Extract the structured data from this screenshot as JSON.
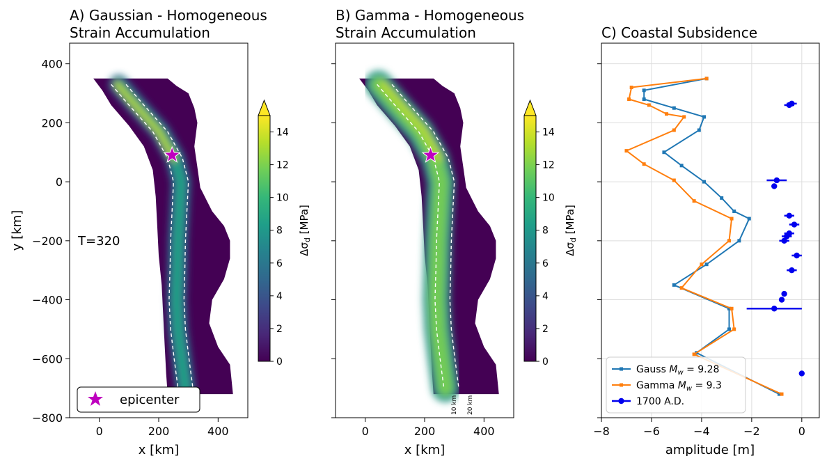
{
  "colors": {
    "gauss": "#1f77b4",
    "gamma": "#ff7f0e",
    "obs": "#0000ee",
    "epicenter": "#bf00bf",
    "map_fill": "#440154",
    "dashed": "#ffffff",
    "annotation": "#808080",
    "grid": "#dddddd"
  },
  "colorbar_stops": [
    "#440154",
    "#482878",
    "#3e4989",
    "#31688e",
    "#26828e",
    "#1f9e89",
    "#35b779",
    "#6ece58",
    "#b5de2b",
    "#fde725"
  ],
  "chart_data": [
    {
      "type": "heatmap",
      "title": "A) Gaussian - Homogeneous\nStrain Accumulation",
      "title_lines": [
        "A) Gaussian - Homogeneous",
        "Strain Accumulation"
      ],
      "xlabel": "x [km]",
      "ylabel": "y [km]",
      "xlim": [
        -100,
        500
      ],
      "ylim": [
        -800,
        470
      ],
      "xticks": [
        0,
        200,
        400
      ],
      "yticks": [
        -800,
        -600,
        -400,
        -200,
        0,
        200,
        400
      ],
      "colorbar": {
        "label": "Δσ_d [MPa]",
        "ticks": [
          0,
          2,
          4,
          6,
          8,
          10,
          12,
          14
        ],
        "range": [
          0,
          15
        ],
        "extend": "max"
      },
      "annotation": "T=320",
      "epicenter": {
        "x": 245,
        "y": 90
      },
      "legend": {
        "label": "epicenter",
        "position": "lower-left"
      },
      "grid": false
    },
    {
      "type": "heatmap",
      "title": "B) Gamma - Homogeneous\nStrain Accumulation",
      "title_lines": [
        "B) Gamma - Homogeneous",
        "Strain Accumulation"
      ],
      "xlabel": "x (km)",
      "xlabel_text": "x [km]",
      "xlim": [
        -100,
        500
      ],
      "ylim": [
        -800,
        470
      ],
      "xticks": [
        0,
        200,
        400
      ],
      "colorbar": {
        "label": "Δσ_d [MPa]",
        "ticks": [
          0,
          2,
          4,
          6,
          8,
          10,
          12,
          14
        ],
        "range": [
          0,
          15
        ],
        "extend": "max"
      },
      "contour_labels": [
        "10 km",
        "20 km"
      ],
      "epicenter": {
        "x": 220,
        "y": 90
      },
      "grid": false
    },
    {
      "type": "line",
      "title": "C) Coastal Subsidence",
      "xlabel": "amplitude [m]",
      "xlim": [
        -8,
        0.7
      ],
      "ylim": [
        -800,
        470
      ],
      "xticks": [
        -8,
        -6,
        -4,
        -2,
        0
      ],
      "grid": true,
      "legend_position": "lower-left",
      "series": [
        {
          "name": "Gauss M_w = 9.28",
          "legend_prefix": "Gauss ",
          "legend_math": "9.28",
          "color_key": "gauss",
          "points": [
            [
              -3.8,
              350
            ],
            [
              -6.3,
              310
            ],
            [
              -6.3,
              280
            ],
            [
              -5.1,
              250
            ],
            [
              -3.9,
              220
            ],
            [
              -4.1,
              175
            ],
            [
              -5.5,
              100
            ],
            [
              -4.8,
              55
            ],
            [
              -3.9,
              0
            ],
            [
              -3.2,
              -55
            ],
            [
              -2.7,
              -100
            ],
            [
              -2.1,
              -125
            ],
            [
              -2.5,
              -200
            ],
            [
              -3.8,
              -280
            ],
            [
              -5.1,
              -350
            ],
            [
              -2.9,
              -430
            ],
            [
              -2.9,
              -500
            ],
            [
              -4.2,
              -580
            ],
            [
              -0.9,
              -720
            ]
          ]
        },
        {
          "name": "Gamma M_w = 9.3",
          "legend_prefix": "Gamma ",
          "legend_math": "9.3",
          "color_key": "gamma",
          "points": [
            [
              -3.8,
              350
            ],
            [
              -6.8,
              320
            ],
            [
              -6.9,
              280
            ],
            [
              -6.1,
              260
            ],
            [
              -5.4,
              230
            ],
            [
              -4.7,
              220
            ],
            [
              -5.1,
              175
            ],
            [
              -7.0,
              105
            ],
            [
              -6.3,
              60
            ],
            [
              -5.1,
              5
            ],
            [
              -4.3,
              -65
            ],
            [
              -2.8,
              -125
            ],
            [
              -2.9,
              -200
            ],
            [
              -4.0,
              -280
            ],
            [
              -4.8,
              -360
            ],
            [
              -2.8,
              -430
            ],
            [
              -2.7,
              -500
            ],
            [
              -4.3,
              -585
            ],
            [
              -0.8,
              -720
            ]
          ]
        },
        {
          "name": "1700 A.D.",
          "color_key": "obs",
          "points": [
            [
              -0.4,
              265
            ],
            [
              -0.5,
              260
            ],
            [
              -1.0,
              5
            ],
            [
              -1.1,
              -15
            ],
            [
              -0.5,
              -115
            ],
            [
              -0.3,
              -145
            ],
            [
              -0.5,
              -175
            ],
            [
              -0.6,
              -185
            ],
            [
              -0.7,
              -200
            ],
            [
              -0.2,
              -250
            ],
            [
              -0.4,
              -300
            ],
            [
              -0.7,
              -380
            ],
            [
              -0.8,
              -400
            ],
            [
              -1.1,
              -430
            ],
            [
              0.0,
              -650
            ]
          ],
          "xerr": [
            0.2,
            0.2,
            0.4,
            0.0,
            0.2,
            0.2,
            0.2,
            0.2,
            0.2,
            0.2,
            0.2,
            0.1,
            0.1,
            1.1,
            0.0
          ]
        }
      ]
    }
  ]
}
